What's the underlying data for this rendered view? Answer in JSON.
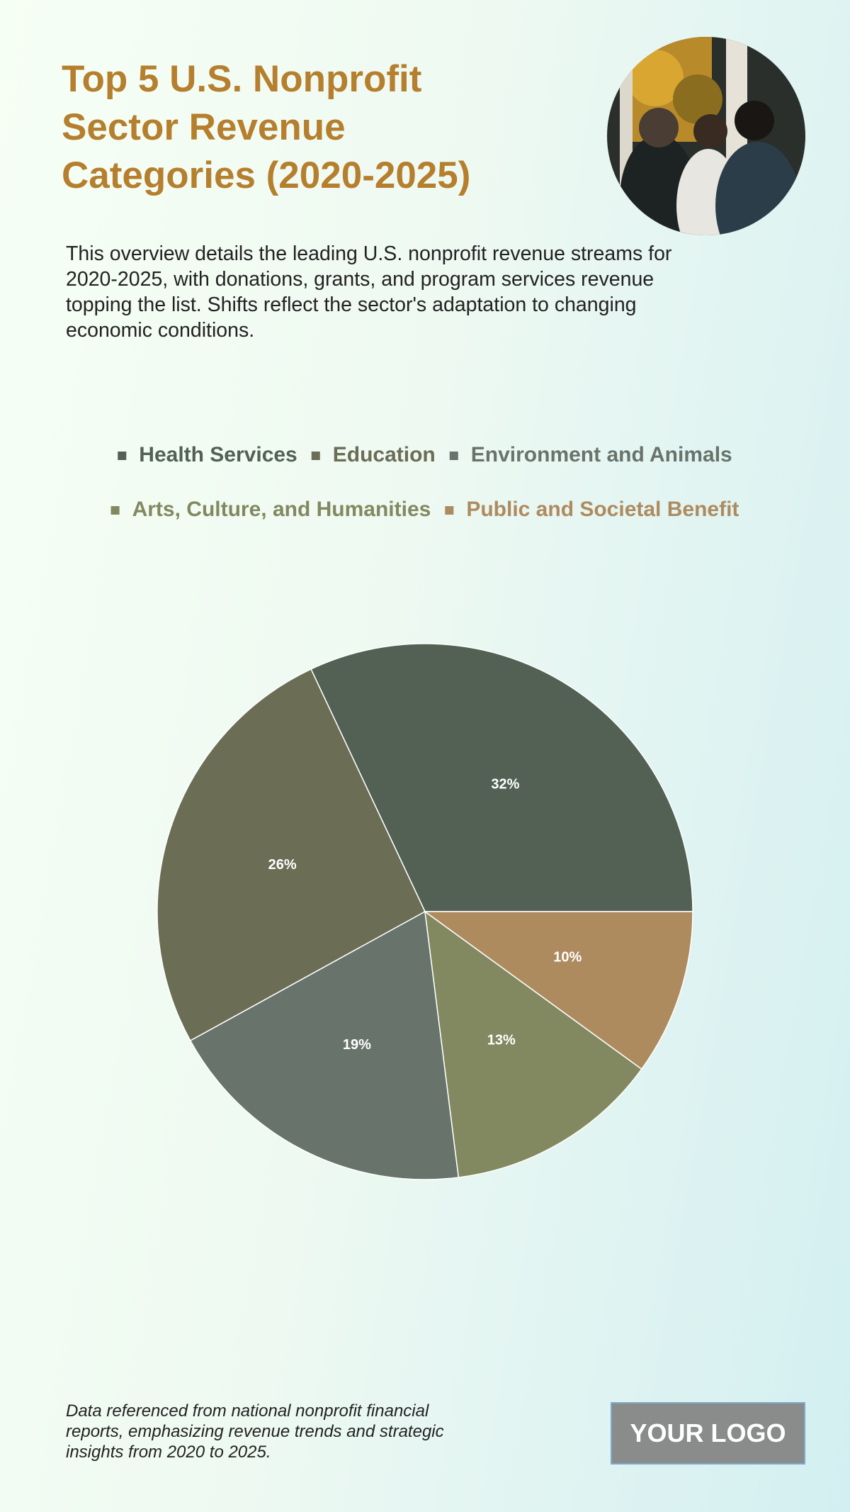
{
  "header": {
    "title": "Top 5 U.S. Nonprofit Sector Revenue Categories (2020-2025)",
    "description": "This overview details the leading U.S. nonprofit revenue streams for 2020-2025, with donations, grants, and program services revenue topping the list. Shifts reflect the sector's adaptation to changing economic conditions."
  },
  "chart_data": {
    "type": "pie",
    "categories": [
      "Health Services",
      "Education",
      "Environment and Animals",
      "Arts, Culture, and Humanities",
      "Public and Societal Benefit"
    ],
    "values": [
      32,
      26,
      19,
      13,
      10
    ],
    "value_labels": [
      "32%",
      "26%",
      "19%",
      "13%",
      "10%"
    ],
    "colors": [
      "#526154",
      "#6b6d55",
      "#68746b",
      "#82885f",
      "#ae8b5f"
    ]
  },
  "footer": {
    "note": "Data referenced from national nonprofit financial reports, emphasizing revenue trends and strategic insights from 2020 to 2025.",
    "logo": "YOUR LOGO"
  }
}
